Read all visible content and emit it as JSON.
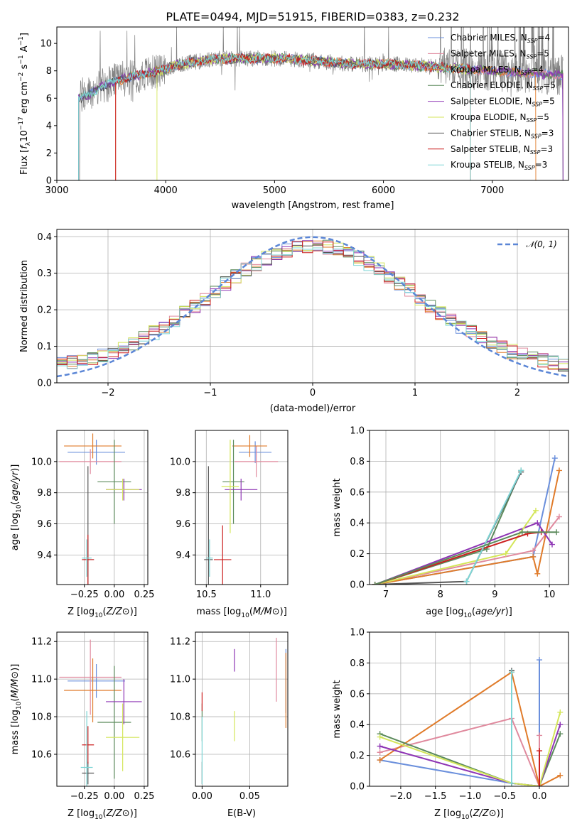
{
  "figure": {
    "title": "PLATE=0494, MJD=51915, FIBERID=0383, z=0.232",
    "model_colors": [
      "#6a8fdc",
      "#e08a9e",
      "#e07b2a",
      "#5b8a5b",
      "#8e35b5",
      "#d4e65a",
      "#555555",
      "#cc1f1f",
      "#7fd6d6"
    ],
    "model_names": [
      {
        "base": "Chabrier MILES, N",
        "sub": "SSP",
        "n": "=4"
      },
      {
        "base": "Salpeter MILES, N",
        "sub": "SSP",
        "n": "=5"
      },
      {
        "base": "Kroupa MILES, N",
        "sub": "SSP",
        "n": "=4"
      },
      {
        "base": "Chabrier ELODIE, N",
        "sub": "SSP",
        "n": "=5"
      },
      {
        "base": "Salpeter ELODIE, N",
        "sub": "SSP",
        "n": "=5"
      },
      {
        "base": "Kroupa ELODIE, N",
        "sub": "SSP",
        "n": "=5"
      },
      {
        "base": "Chabrier STELIB, N",
        "sub": "SSP",
        "n": "=3"
      },
      {
        "base": "Salpeter STELIB, N",
        "sub": "SSP",
        "n": "=3"
      },
      {
        "base": "Kroupa STELIB, N",
        "sub": "SSP",
        "n": "=3"
      }
    ]
  },
  "chart_data": [
    {
      "id": "spectrum",
      "type": "line",
      "xlabel": "wavelength [Angstrom, rest frame]",
      "xlim": [
        3000,
        7700
      ],
      "ylim": [
        0,
        11.2
      ],
      "xticks": [
        3000,
        4000,
        5000,
        6000,
        7000
      ],
      "yticks": [
        0,
        2,
        4,
        6,
        8,
        10
      ],
      "data_color": "#808080",
      "model_starts": [
        3200,
        3540,
        3540,
        3200,
        3200,
        3920,
        3200,
        3540,
        3200
      ],
      "model_ends": [
        7650,
        7650,
        7400,
        7650,
        7650,
        6800,
        6800,
        6800,
        6800
      ],
      "continuum": [
        [
          3200,
          6.0
        ],
        [
          3300,
          6.3
        ],
        [
          3400,
          6.8
        ],
        [
          3550,
          7.3
        ],
        [
          3700,
          7.6
        ],
        [
          3900,
          7.9
        ],
        [
          4100,
          8.4
        ],
        [
          4300,
          8.7
        ],
        [
          4500,
          8.9
        ],
        [
          4800,
          8.9
        ],
        [
          5100,
          8.9
        ],
        [
          5400,
          8.7
        ],
        [
          5700,
          8.5
        ],
        [
          6000,
          8.5
        ],
        [
          6300,
          8.4
        ],
        [
          6600,
          8.2
        ],
        [
          7000,
          8.0
        ],
        [
          7400,
          7.8
        ],
        [
          7650,
          7.7
        ]
      ],
      "legend_position": "upper right"
    },
    {
      "id": "residual_hist",
      "type": "bar",
      "xlabel": "(data-model)/error",
      "ylabel": "Normed distribution",
      "xlim": [
        -2.5,
        2.5
      ],
      "ylim": [
        0,
        0.42
      ],
      "xticks": [
        -2,
        -1,
        0,
        1,
        2
      ],
      "yticks": [
        0.0,
        0.1,
        0.2,
        0.3,
        0.4
      ],
      "bin_width": 0.1,
      "reference": {
        "name": "𝒩(0, 1)",
        "style": "dashed",
        "color": "#5b86d6",
        "mean": 0,
        "sigma": 1
      },
      "legend_position": "upper right"
    },
    {
      "id": "age_vs_Z",
      "type": "scatter",
      "xlabel": "Z [log10(Z/Z⊙)]",
      "ylabel": "age [log10(age/yr)]",
      "xlim": [
        -0.48,
        0.28
      ],
      "ylim": [
        9.21,
        10.2
      ],
      "xticks": [
        -0.25,
        0.0,
        0.25
      ],
      "yticks": [
        9.4,
        9.6,
        9.8,
        10.0
      ],
      "points": [
        {
          "x": -0.15,
          "y": 10.06,
          "xerr": 0.24,
          "yerr": 0.08
        },
        {
          "x": -0.2,
          "y": 10.0,
          "xerr": 0.26,
          "yerr": 0.08
        },
        {
          "x": -0.18,
          "y": 10.1,
          "xerr": 0.24,
          "yerr": 0.08
        },
        {
          "x": 0.0,
          "y": 9.87,
          "xerr": 0.14,
          "yerr": 0.27
        },
        {
          "x": 0.08,
          "y": 9.82,
          "xerr": 0.15,
          "yerr": 0.07
        },
        {
          "x": 0.07,
          "y": 9.82,
          "xerr": 0.14,
          "yerr": 0.07
        },
        {
          "x": -0.22,
          "y": 9.37,
          "xerr": 0.05,
          "yerr": 0.6
        },
        {
          "x": -0.22,
          "y": 9.37,
          "xerr": 0.05,
          "yerr": 0.16
        },
        {
          "x": -0.23,
          "y": 9.38,
          "xerr": 0.04,
          "yerr": 0.12
        }
      ]
    },
    {
      "id": "age_vs_mass",
      "type": "scatter",
      "xlabel": "mass [log10(M/M⊙)]",
      "xlim": [
        10.4,
        11.25
      ],
      "ylim": [
        9.21,
        10.2
      ],
      "xticks": [
        10.5,
        11.0
      ],
      "yticks": [
        9.4,
        9.6,
        9.8,
        10.0
      ],
      "points": [
        {
          "x": 10.95,
          "y": 10.06,
          "xerr": 0.15,
          "yerr": 0.07
        },
        {
          "x": 10.96,
          "y": 10.0,
          "xerr": 0.2,
          "yerr": 0.1
        },
        {
          "x": 10.9,
          "y": 10.1,
          "xerr": 0.16,
          "yerr": 0.07
        },
        {
          "x": 10.75,
          "y": 9.87,
          "xerr": 0.1,
          "yerr": 0.27
        },
        {
          "x": 10.82,
          "y": 9.82,
          "xerr": 0.15,
          "yerr": 0.07
        },
        {
          "x": 10.72,
          "y": 9.84,
          "xerr": 0.08,
          "yerr": 0.3
        },
        {
          "x": 10.52,
          "y": 9.37,
          "xerr": 0.04,
          "yerr": 0.6
        },
        {
          "x": 10.65,
          "y": 9.37,
          "xerr": 0.08,
          "yerr": 0.22
        },
        {
          "x": 10.53,
          "y": 9.38,
          "xerr": 0.03,
          "yerr": 0.12
        }
      ]
    },
    {
      "id": "mass_weight_vs_age",
      "type": "line",
      "xlabel": "age [log10(age/yr)]",
      "ylabel": "mass weight",
      "xlim": [
        6.7,
        10.35
      ],
      "ylim": [
        0,
        1.0
      ],
      "xticks": [
        7,
        8,
        9,
        10
      ],
      "yticks": [
        0.0,
        0.2,
        0.4,
        0.6,
        0.8,
        1.0
      ],
      "series": [
        {
          "x": [
            6.8,
            9.7,
            10.1
          ],
          "y": [
            0.0,
            0.18,
            0.82
          ]
        },
        {
          "x": [
            6.8,
            9.7,
            10.18
          ],
          "y": [
            0.0,
            0.22,
            0.44
          ]
        },
        {
          "x": [
            6.8,
            9.7,
            9.78,
            10.18
          ],
          "y": [
            0.0,
            0.18,
            0.07,
            0.74
          ]
        },
        {
          "x": [
            6.8,
            8.85,
            9.48
          ],
          "y": [
            0.0,
            0.23,
            0.74
          ]
        },
        {
          "x": [
            6.8,
            9.78,
            10.05
          ],
          "y": [
            0.0,
            0.4,
            0.26
          ]
        },
        {
          "x": [
            6.8,
            9.2,
            9.75
          ],
          "y": [
            0.0,
            0.2,
            0.48
          ]
        },
        {
          "x": [
            6.8,
            8.48,
            9.48
          ],
          "y": [
            0.0,
            0.02,
            0.73
          ]
        },
        {
          "x": [
            6.8,
            9.6,
            9.85
          ],
          "y": [
            0.0,
            0.33,
            0.34
          ]
        },
        {
          "x": [
            8.48,
            9.48
          ],
          "y": [
            0.02,
            0.74
          ]
        }
      ],
      "extra_series": [
        {
          "color": "#5b8a5b",
          "x": [
            6.8,
            9.5,
            10.13
          ],
          "y": [
            0.0,
            0.34,
            0.34
          ]
        }
      ]
    },
    {
      "id": "mass_vs_Z",
      "type": "scatter",
      "xlabel": "Z [log10(Z/Z⊙)]",
      "ylabel": "mass [log10(M/M⊙)]",
      "xlim": [
        -0.48,
        0.28
      ],
      "ylim": [
        10.43,
        11.25
      ],
      "xticks": [
        -0.25,
        0.0,
        0.25
      ],
      "yticks": [
        10.6,
        10.8,
        11.0,
        11.2
      ],
      "points": [
        {
          "x": -0.15,
          "y": 10.99,
          "xerr": 0.24,
          "yerr": 0.09
        },
        {
          "x": -0.2,
          "y": 11.01,
          "xerr": 0.26,
          "yerr": 0.2
        },
        {
          "x": -0.18,
          "y": 10.94,
          "xerr": 0.24,
          "yerr": 0.17
        },
        {
          "x": 0.0,
          "y": 10.77,
          "xerr": 0.14,
          "yerr": 0.3
        },
        {
          "x": 0.08,
          "y": 10.88,
          "xerr": 0.15,
          "yerr": 0.12
        },
        {
          "x": 0.07,
          "y": 10.69,
          "xerr": 0.14,
          "yerr": 0.18
        },
        {
          "x": -0.22,
          "y": 10.5,
          "xerr": 0.05,
          "yerr": 0.06
        },
        {
          "x": -0.22,
          "y": 10.65,
          "xerr": 0.05,
          "yerr": 0.1
        },
        {
          "x": -0.23,
          "y": 10.53,
          "xerr": 0.05,
          "yerr": 0.3
        }
      ]
    },
    {
      "id": "mass_vs_ebv",
      "type": "scatter",
      "xlabel": "E(B-V)",
      "xlim": [
        -0.007,
        0.09
      ],
      "ylim": [
        10.43,
        11.25
      ],
      "xticks": [
        0.0,
        0.05
      ],
      "yticks": [
        10.6,
        10.8,
        11.0,
        11.2
      ],
      "points": [
        {
          "x": 0.088,
          "y": 10.99,
          "xerr": 0,
          "yerr": 0.17
        },
        {
          "x": 0.078,
          "y": 11.05,
          "xerr": 0,
          "yerr": 0.17
        },
        {
          "x": 0.088,
          "y": 10.94,
          "xerr": 0,
          "yerr": 0.2
        },
        {
          "x": 0.0,
          "y": 10.77,
          "xerr": 0,
          "yerr": 0.1
        },
        {
          "x": 0.034,
          "y": 11.1,
          "xerr": 0,
          "yerr": 0.06
        },
        {
          "x": 0.034,
          "y": 10.75,
          "xerr": 0,
          "yerr": 0.08
        },
        {
          "x": 0.0,
          "y": 10.5,
          "xerr": 0,
          "yerr": 0.06
        },
        {
          "x": 0.0,
          "y": 10.88,
          "xerr": 0,
          "yerr": 0.05
        },
        {
          "x": 0.0,
          "y": 10.62,
          "xerr": 0,
          "yerr": 0.18
        }
      ]
    },
    {
      "id": "mass_weight_vs_Z",
      "type": "line",
      "xlabel": "Z [log10(Z/Z⊙)]",
      "ylabel": "mass weight",
      "xlim": [
        -2.45,
        0.42
      ],
      "ylim": [
        0,
        1.0
      ],
      "xticks": [
        -2.0,
        -1.5,
        -1.0,
        -0.5,
        0.0
      ],
      "yticks": [
        0.0,
        0.2,
        0.4,
        0.6,
        0.8,
        1.0
      ],
      "series": [
        {
          "x": [
            -2.3,
            -0.4,
            0.0,
            0.0
          ],
          "y": [
            0.17,
            0.02,
            0.0,
            0.82
          ]
        },
        {
          "x": [
            -2.3,
            -0.4,
            0.0,
            0.0
          ],
          "y": [
            0.22,
            0.44,
            0.0,
            0.33
          ]
        },
        {
          "x": [
            -2.3,
            -0.4,
            0.0,
            0.3
          ],
          "y": [
            0.17,
            0.74,
            0.0,
            0.07
          ]
        },
        {
          "x": [
            -2.3,
            -0.4,
            0.0,
            0.3
          ],
          "y": [
            0.34,
            0.02,
            0.0,
            0.34
          ]
        },
        {
          "x": [
            -2.3,
            -0.4,
            0.0,
            0.3
          ],
          "y": [
            0.26,
            0.02,
            0.0,
            0.4
          ]
        },
        {
          "x": [
            -2.3,
            -0.4,
            0.0,
            0.3
          ],
          "y": [
            0.32,
            0.02,
            0.0,
            0.48
          ]
        },
        {
          "x": [
            -0.4,
            -0.4
          ],
          "y": [
            0.02,
            0.75
          ]
        },
        {
          "x": [
            0.0,
            0.0
          ],
          "y": [
            0.0,
            0.23
          ]
        },
        {
          "x": [
            -0.4,
            -0.4
          ],
          "y": [
            0.02,
            0.74
          ]
        }
      ]
    }
  ]
}
